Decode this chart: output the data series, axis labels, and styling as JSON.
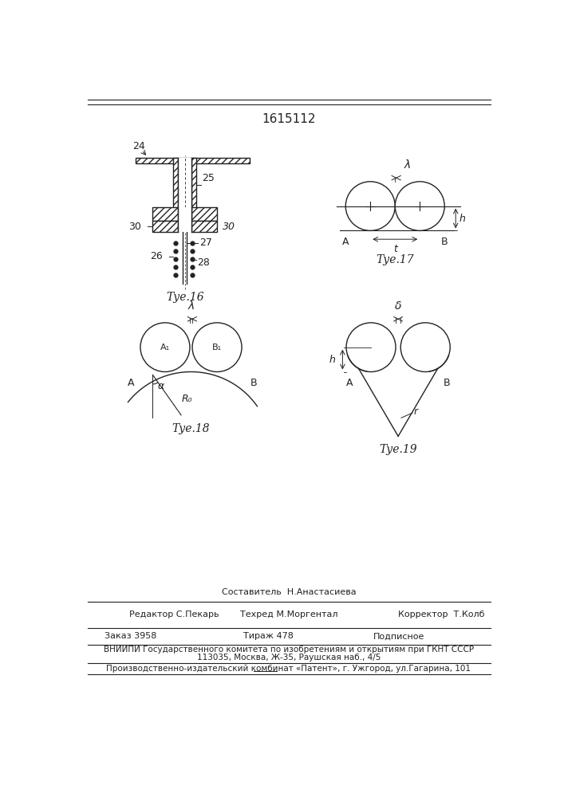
{
  "title": "1615112",
  "fig16_label": "Τуе.16",
  "fig17_label": "Τуе.17",
  "fig18_label": "Τуе.18",
  "fig19_label": "Τуе.19",
  "footer_sestavitel": "Составитель  Н.Анастасиева",
  "footer_redaktor": "Редактор С.Пекарь",
  "footer_tehred": "Техред М.Моргентал",
  "footer_korrektor": "Корректор  Т.Колб",
  "footer_zakaz": "Заказ 3958",
  "footer_tirazh": "Тираж 478",
  "footer_podpisnoe": "Подписное",
  "footer_vniip": "ВНИИПИ Государственного комитета по изобретениям и открытиям при ГКНТ СССР",
  "footer_addr": "113035, Москва, Ж-35, Раушская наб., 4/5",
  "footer_patent": "Производственно-издательский комбинат «Патент», г. Ужгород, ул.Гагарина, 101"
}
